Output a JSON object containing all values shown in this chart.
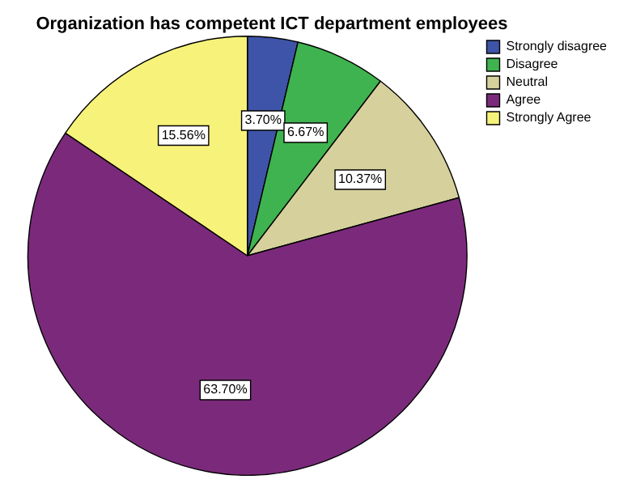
{
  "chart_data": {
    "type": "pie",
    "title": "Organization has competent ICT department employees",
    "categories": [
      "Strongly disagree",
      "Disagree",
      "Neutral",
      "Agree",
      "Strongly Agree"
    ],
    "values": [
      3.7,
      6.67,
      10.37,
      63.7,
      15.56
    ],
    "colors": [
      "#3e54a8",
      "#3fb34f",
      "#d6d19c",
      "#7b2a7b",
      "#f7f27a"
    ],
    "value_labels": [
      "3.70%",
      "6.67%",
      "10.37%",
      "63.70%",
      "15.56%"
    ],
    "legend": "top right"
  }
}
